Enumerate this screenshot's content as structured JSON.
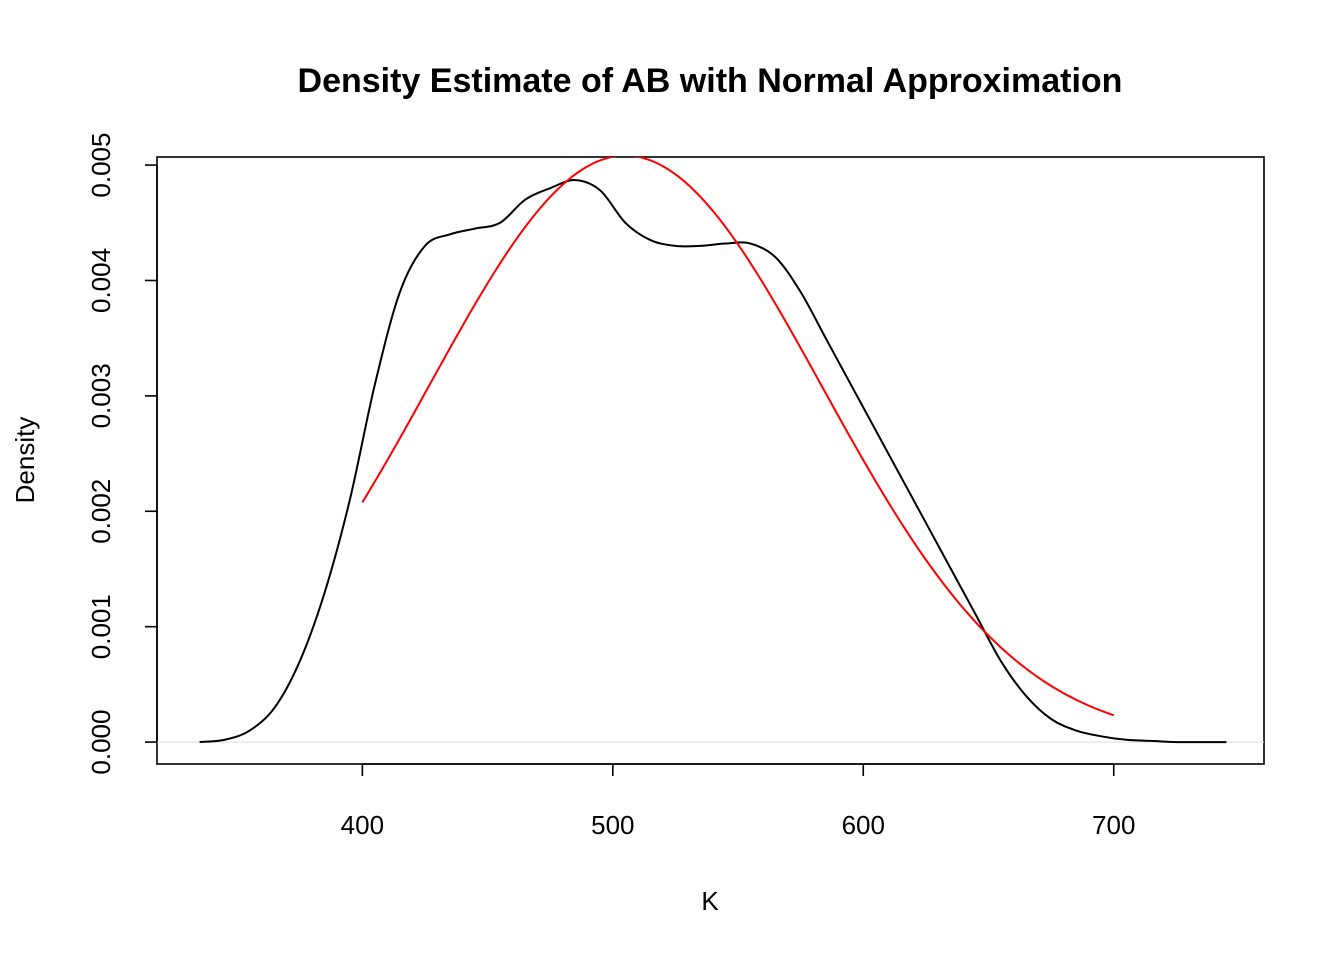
{
  "chart_data": {
    "type": "line",
    "title": "Density Estimate of AB with Normal Approximation",
    "xlabel": "K",
    "ylabel": "Density",
    "xlim": [
      318,
      760
    ],
    "ylim": [
      -0.00019,
      0.00507
    ],
    "xticks": [
      400,
      500,
      600,
      700
    ],
    "xtick_labels": [
      "400",
      "500",
      "600",
      "700"
    ],
    "yticks": [
      0,
      0.001,
      0.002,
      0.003,
      0.004,
      0.005
    ],
    "ytick_labels": [
      "0.000",
      "0.001",
      "0.002",
      "0.003",
      "0.004",
      "0.005"
    ],
    "grid": false,
    "legend": "none",
    "baseline_y": 0,
    "series": [
      {
        "color": "#000000",
        "x": [
          335,
          345,
          355,
          365,
          375,
          385,
          395,
          405,
          415,
          425,
          435,
          445,
          455,
          465,
          475,
          485,
          495,
          505,
          515,
          525,
          535,
          545,
          555,
          565,
          575,
          585,
          595,
          605,
          615,
          625,
          635,
          645,
          655,
          665,
          675,
          685,
          695,
          705,
          715,
          725,
          735,
          745
        ],
        "y": [
          0.0,
          2e-05,
          0.0001,
          0.0003,
          0.0007,
          0.0013,
          0.0021,
          0.0031,
          0.0039,
          0.0043,
          0.0044,
          0.00445,
          0.0045,
          0.0047,
          0.0048,
          0.00487,
          0.00478,
          0.0045,
          0.00435,
          0.0043,
          0.0043,
          0.00432,
          0.00432,
          0.0042,
          0.0039,
          0.0035,
          0.0031,
          0.0027,
          0.0023,
          0.0019,
          0.0015,
          0.0011,
          0.0007,
          0.0004,
          0.0002,
          0.0001,
          5e-05,
          2e-05,
          1e-05,
          0.0,
          0.0,
          0.0
        ]
      },
      {
        "color": "#ff0000",
        "mean": 505,
        "sd": 78.5,
        "x_from": 400,
        "x_to": 700
      }
    ]
  }
}
